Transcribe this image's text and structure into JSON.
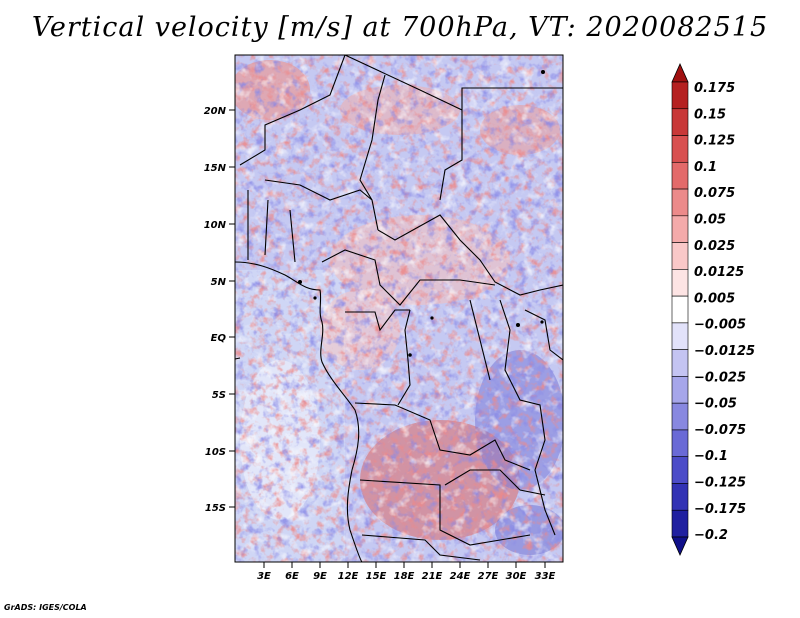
{
  "title": "Vertical velocity [m/s] at 700hPa, VT: 2020082515",
  "credit": "GrADS: IGES/COLA",
  "map": {
    "lat_labels": [
      "20N",
      "15N",
      "10N",
      "5N",
      "EQ",
      "5S",
      "10S",
      "15S"
    ],
    "lon_labels": [
      "3E",
      "6E",
      "9E",
      "12E",
      "15E",
      "18E",
      "21E",
      "24E",
      "27E",
      "30E",
      "33E"
    ]
  },
  "colorbar": {
    "levels": [
      "0.175",
      "0.15",
      "0.125",
      "0.1",
      "0.075",
      "0.05",
      "0.025",
      "0.0125",
      "0.005",
      "-0.005",
      "-0.0125",
      "-0.025",
      "-0.05",
      "-0.075",
      "-0.1",
      "-0.125",
      "-0.175",
      "-0.2"
    ],
    "colors": [
      "#a01010",
      "#b52020",
      "#c83838",
      "#d85050",
      "#e36a6a",
      "#ec8a8a",
      "#f4aaaa",
      "#f9c8c8",
      "#fde4e4",
      "#ffffff",
      "#e2e2fa",
      "#c4c4f2",
      "#a6a6ea",
      "#8888e0",
      "#6a6ad6",
      "#4c4cc8",
      "#3232b4",
      "#2020a0",
      "#10108a"
    ]
  }
}
